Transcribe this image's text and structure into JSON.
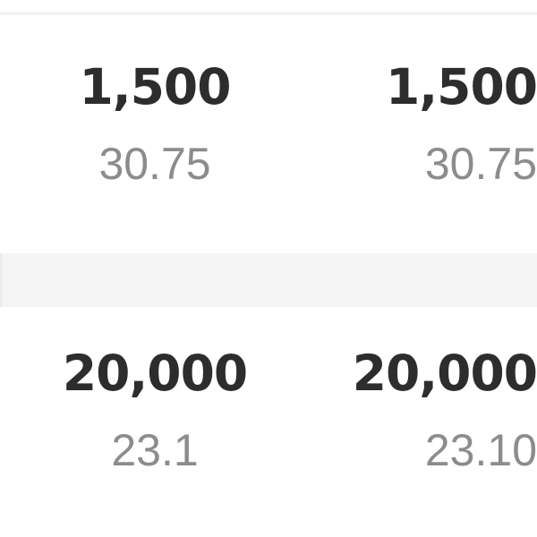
{
  "rows": [
    {
      "cells": [
        {
          "value": "1,500",
          "sub": "30.75"
        },
        {
          "value": "1,500",
          "sub": "30.75"
        }
      ]
    },
    {
      "cells": [
        {
          "value": "20,000",
          "sub": "23.1"
        },
        {
          "value": "20,000",
          "sub": "23.10"
        }
      ]
    }
  ]
}
